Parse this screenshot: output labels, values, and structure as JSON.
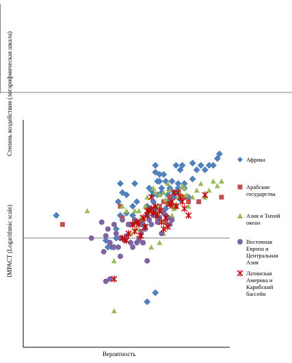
{
  "chart_data": {
    "type": "scatter",
    "title": "",
    "xlabel": "Вероятность",
    "ylabel": "IMPACT (Logarithmic scale)",
    "ylabel_top": "Степень воздействия (логарифмическая шкала)",
    "xlim": [
      0,
      100
    ],
    "ylim": [
      0,
      100
    ],
    "y_log_scale": true,
    "grid": false,
    "legend_position": "right",
    "reference_y": 48,
    "series": [
      {
        "name": "Африка",
        "marker": "diamond",
        "color": "#4F81BD",
        "points": [
          [
            16,
            58
          ],
          [
            40,
            47
          ],
          [
            41,
            44
          ],
          [
            44,
            44
          ],
          [
            45,
            48
          ],
          [
            45,
            52
          ],
          [
            46,
            64
          ],
          [
            47,
            58
          ],
          [
            47,
            72
          ],
          [
            48,
            68
          ],
          [
            50,
            59
          ],
          [
            50,
            67
          ],
          [
            53,
            58
          ],
          [
            53,
            62
          ],
          [
            54,
            72
          ],
          [
            55,
            64
          ],
          [
            55,
            55
          ],
          [
            57,
            56
          ],
          [
            58,
            54
          ],
          [
            60,
            58
          ],
          [
            60,
            62
          ],
          [
            61,
            70
          ],
          [
            62,
            69
          ],
          [
            63,
            67
          ],
          [
            63,
            64
          ],
          [
            64,
            80
          ],
          [
            64,
            77
          ],
          [
            65,
            73
          ],
          [
            65,
            67
          ],
          [
            66,
            76
          ],
          [
            66,
            73
          ],
          [
            67,
            70
          ],
          [
            67,
            68
          ],
          [
            68,
            76
          ],
          [
            69,
            73
          ],
          [
            69,
            61
          ],
          [
            70,
            67
          ],
          [
            70,
            64
          ],
          [
            71,
            69
          ],
          [
            71,
            70
          ],
          [
            72,
            73
          ],
          [
            73,
            66
          ],
          [
            73,
            68
          ],
          [
            74,
            80
          ],
          [
            75,
            72
          ],
          [
            75,
            70
          ],
          [
            76,
            78
          ],
          [
            76,
            65
          ],
          [
            77,
            80
          ],
          [
            78,
            70
          ],
          [
            78,
            72
          ],
          [
            80,
            66
          ],
          [
            82,
            74
          ],
          [
            82,
            81
          ],
          [
            84,
            78
          ],
          [
            86,
            80
          ],
          [
            88,
            78
          ],
          [
            90,
            80
          ],
          [
            92,
            80
          ],
          [
            94,
            83
          ],
          [
            95,
            85
          ],
          [
            60,
            20
          ],
          [
            64,
            24
          ]
        ]
      },
      {
        "name": "Арабские государства",
        "marker": "square",
        "color": "#C0504D",
        "points": [
          [
            19,
            54
          ],
          [
            47,
            62
          ],
          [
            48,
            57
          ],
          [
            51,
            54
          ],
          [
            53,
            54
          ],
          [
            55,
            55
          ],
          [
            56,
            48
          ],
          [
            57,
            51
          ],
          [
            58,
            56
          ],
          [
            59,
            53
          ],
          [
            61,
            60
          ],
          [
            62,
            60
          ],
          [
            63,
            58
          ],
          [
            64,
            59
          ],
          [
            65,
            57
          ],
          [
            66,
            62
          ],
          [
            67,
            60
          ],
          [
            68,
            64
          ],
          [
            69,
            55
          ],
          [
            70,
            63
          ],
          [
            71,
            66
          ],
          [
            72,
            62
          ],
          [
            74,
            62
          ],
          [
            78,
            66
          ],
          [
            80,
            64
          ],
          [
            85,
            64
          ],
          [
            96,
            66
          ]
        ]
      },
      {
        "name": "Азия и Тихий океан",
        "marker": "triangle",
        "color": "#9BBB59",
        "points": [
          [
            31,
            60
          ],
          [
            44,
            38
          ],
          [
            44,
            16
          ],
          [
            48,
            62
          ],
          [
            50,
            60
          ],
          [
            52,
            50
          ],
          [
            54,
            60
          ],
          [
            55,
            52
          ],
          [
            56,
            60
          ],
          [
            57,
            57
          ],
          [
            58,
            46
          ],
          [
            59,
            62
          ],
          [
            60,
            66
          ],
          [
            62,
            60
          ],
          [
            63,
            70
          ],
          [
            64,
            68
          ],
          [
            65,
            62
          ],
          [
            66,
            67
          ],
          [
            68,
            68
          ],
          [
            69,
            65
          ],
          [
            70,
            72
          ],
          [
            71,
            69
          ],
          [
            72,
            64
          ],
          [
            73,
            61
          ],
          [
            74,
            63
          ],
          [
            75,
            66
          ],
          [
            76,
            68
          ],
          [
            77,
            71
          ],
          [
            78,
            70
          ],
          [
            79,
            67
          ],
          [
            80,
            62
          ],
          [
            82,
            66
          ],
          [
            84,
            69
          ],
          [
            86,
            72
          ],
          [
            88,
            66
          ],
          [
            90,
            69
          ],
          [
            92,
            73
          ],
          [
            94,
            71
          ],
          [
            96,
            73
          ],
          [
            72,
            58
          ],
          [
            68,
            50
          ],
          [
            66,
            46
          ],
          [
            62,
            44
          ]
        ]
      },
      {
        "name": "Восточная Европа и Центральная Азия",
        "marker": "circle",
        "color": "#8064A2",
        "points": [
          [
            33,
            48
          ],
          [
            38,
            55
          ],
          [
            39,
            42
          ],
          [
            40,
            49
          ],
          [
            41,
            52
          ],
          [
            42,
            30
          ],
          [
            42,
            46
          ],
          [
            43,
            44
          ],
          [
            44,
            54
          ],
          [
            45,
            50
          ],
          [
            46,
            44
          ],
          [
            47,
            40
          ],
          [
            47,
            48
          ],
          [
            48,
            56
          ],
          [
            49,
            47
          ],
          [
            50,
            49
          ],
          [
            51,
            54
          ],
          [
            52,
            46
          ],
          [
            53,
            44
          ],
          [
            54,
            56
          ],
          [
            55,
            46
          ],
          [
            56,
            47
          ],
          [
            57,
            50
          ],
          [
            58,
            46
          ],
          [
            59,
            52
          ],
          [
            60,
            38
          ],
          [
            61,
            56
          ],
          [
            62,
            54
          ],
          [
            63,
            58
          ],
          [
            64,
            61
          ],
          [
            65,
            55
          ],
          [
            66,
            57
          ],
          [
            67,
            50
          ],
          [
            68,
            59
          ],
          [
            69,
            58
          ],
          [
            70,
            57
          ],
          [
            71,
            54
          ],
          [
            72,
            56
          ],
          [
            40,
            29
          ]
        ]
      },
      {
        "name": "Латинская Америка и Карибский бассейн",
        "marker": "x",
        "color": "#C00000",
        "points": [
          [
            44,
            30
          ],
          [
            48,
            48
          ],
          [
            50,
            47
          ],
          [
            51,
            50
          ],
          [
            53,
            54
          ],
          [
            54,
            51
          ],
          [
            55,
            55
          ],
          [
            56,
            54
          ],
          [
            57,
            49
          ],
          [
            58,
            57
          ],
          [
            59,
            53
          ],
          [
            60,
            58
          ],
          [
            61,
            60
          ],
          [
            62,
            61
          ],
          [
            63,
            59
          ],
          [
            64,
            62
          ],
          [
            65,
            58
          ],
          [
            66,
            60
          ],
          [
            67,
            55
          ],
          [
            68,
            52
          ],
          [
            69,
            57
          ],
          [
            70,
            53
          ],
          [
            71,
            63
          ],
          [
            72,
            64
          ],
          [
            73,
            68
          ],
          [
            74,
            62
          ],
          [
            75,
            68
          ],
          [
            76,
            66
          ],
          [
            77,
            64
          ],
          [
            78,
            61
          ],
          [
            80,
            58
          ],
          [
            88,
            67
          ],
          [
            62,
            66
          ],
          [
            60,
            60
          ]
        ]
      }
    ]
  }
}
